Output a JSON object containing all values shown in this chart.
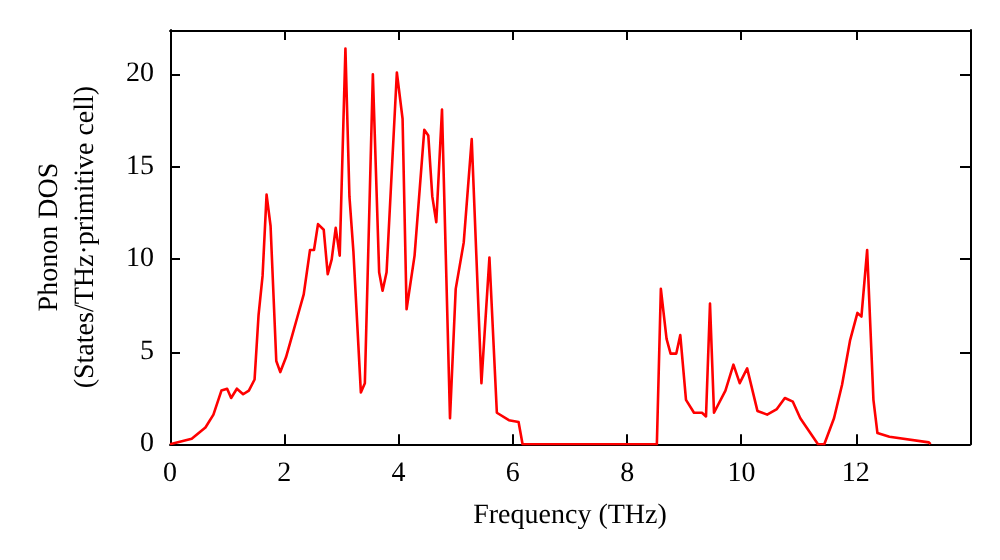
{
  "chart_data": {
    "type": "line",
    "xlabel": "Frequency (THz)",
    "ylabel": "Phonon DOS\n(States/THz·primitive cell)",
    "xlim": [
      0,
      14
    ],
    "ylim": [
      0,
      22.4
    ],
    "xticks": [
      0,
      2,
      4,
      6,
      8,
      10,
      12
    ],
    "yticks": [
      0,
      5,
      10,
      15,
      20
    ],
    "grid": false,
    "marker": "none",
    "line_style": "solid",
    "series": [
      {
        "color": "#ff0000",
        "x": [
          0,
          0.38,
          0.62,
          0.76,
          0.9,
          1.0,
          1.07,
          1.17,
          1.28,
          1.38,
          1.48,
          1.55,
          1.62,
          1.69,
          1.76,
          1.86,
          1.93,
          2.03,
          2.14,
          2.24,
          2.34,
          2.45,
          2.52,
          2.59,
          2.69,
          2.76,
          2.83,
          2.9,
          2.97,
          3.07,
          3.14,
          3.21,
          3.34,
          3.41,
          3.55,
          3.66,
          3.72,
          3.79,
          3.97,
          4.07,
          4.14,
          4.28,
          4.45,
          4.52,
          4.59,
          4.66,
          4.76,
          4.9,
          5.0,
          5.14,
          5.28,
          5.45,
          5.59,
          5.72,
          5.93,
          6.1,
          6.17,
          8.52,
          8.59,
          8.69,
          8.76,
          8.86,
          8.93,
          9.03,
          9.17,
          9.31,
          9.38,
          9.45,
          9.52,
          9.72,
          9.86,
          9.97,
          10.1,
          10.28,
          10.45,
          10.62,
          10.76,
          10.9,
          11.03,
          11.34,
          11.45,
          11.62,
          11.76,
          11.9,
          12.03,
          12.1,
          12.2,
          12.31,
          12.38,
          12.59,
          13.28,
          13.31
        ],
        "values": [
          0,
          0.3,
          0.9,
          1.6,
          2.9,
          3.0,
          2.5,
          3.0,
          2.7,
          2.9,
          3.5,
          7,
          9.1,
          13.5,
          11.8,
          4.5,
          3.9,
          4.7,
          5.9,
          7.0,
          8.1,
          10.5,
          10.5,
          11.9,
          11.6,
          9.2,
          10,
          11.7,
          10.2,
          21.4,
          13.4,
          10.4,
          2.8,
          3.3,
          20,
          9.3,
          8.3,
          9.3,
          20.1,
          17.6,
          7.3,
          10.2,
          17,
          16.7,
          13.4,
          12,
          18.1,
          1.4,
          8.4,
          10.9,
          16.5,
          3.3,
          10.1,
          1.7,
          1.3,
          1.2,
          0,
          0,
          8.4,
          5.7,
          4.9,
          4.9,
          5.9,
          2.4,
          1.7,
          1.7,
          1.5,
          7.6,
          1.7,
          2.9,
          4.3,
          3.3,
          4.1,
          1.8,
          1.6,
          1.9,
          2.5,
          2.3,
          1.4,
          0,
          0,
          1.4,
          3.2,
          5.6,
          7.1,
          6.9,
          10.5,
          2.4,
          0.6,
          0.4,
          0.1,
          0
        ]
      }
    ]
  }
}
